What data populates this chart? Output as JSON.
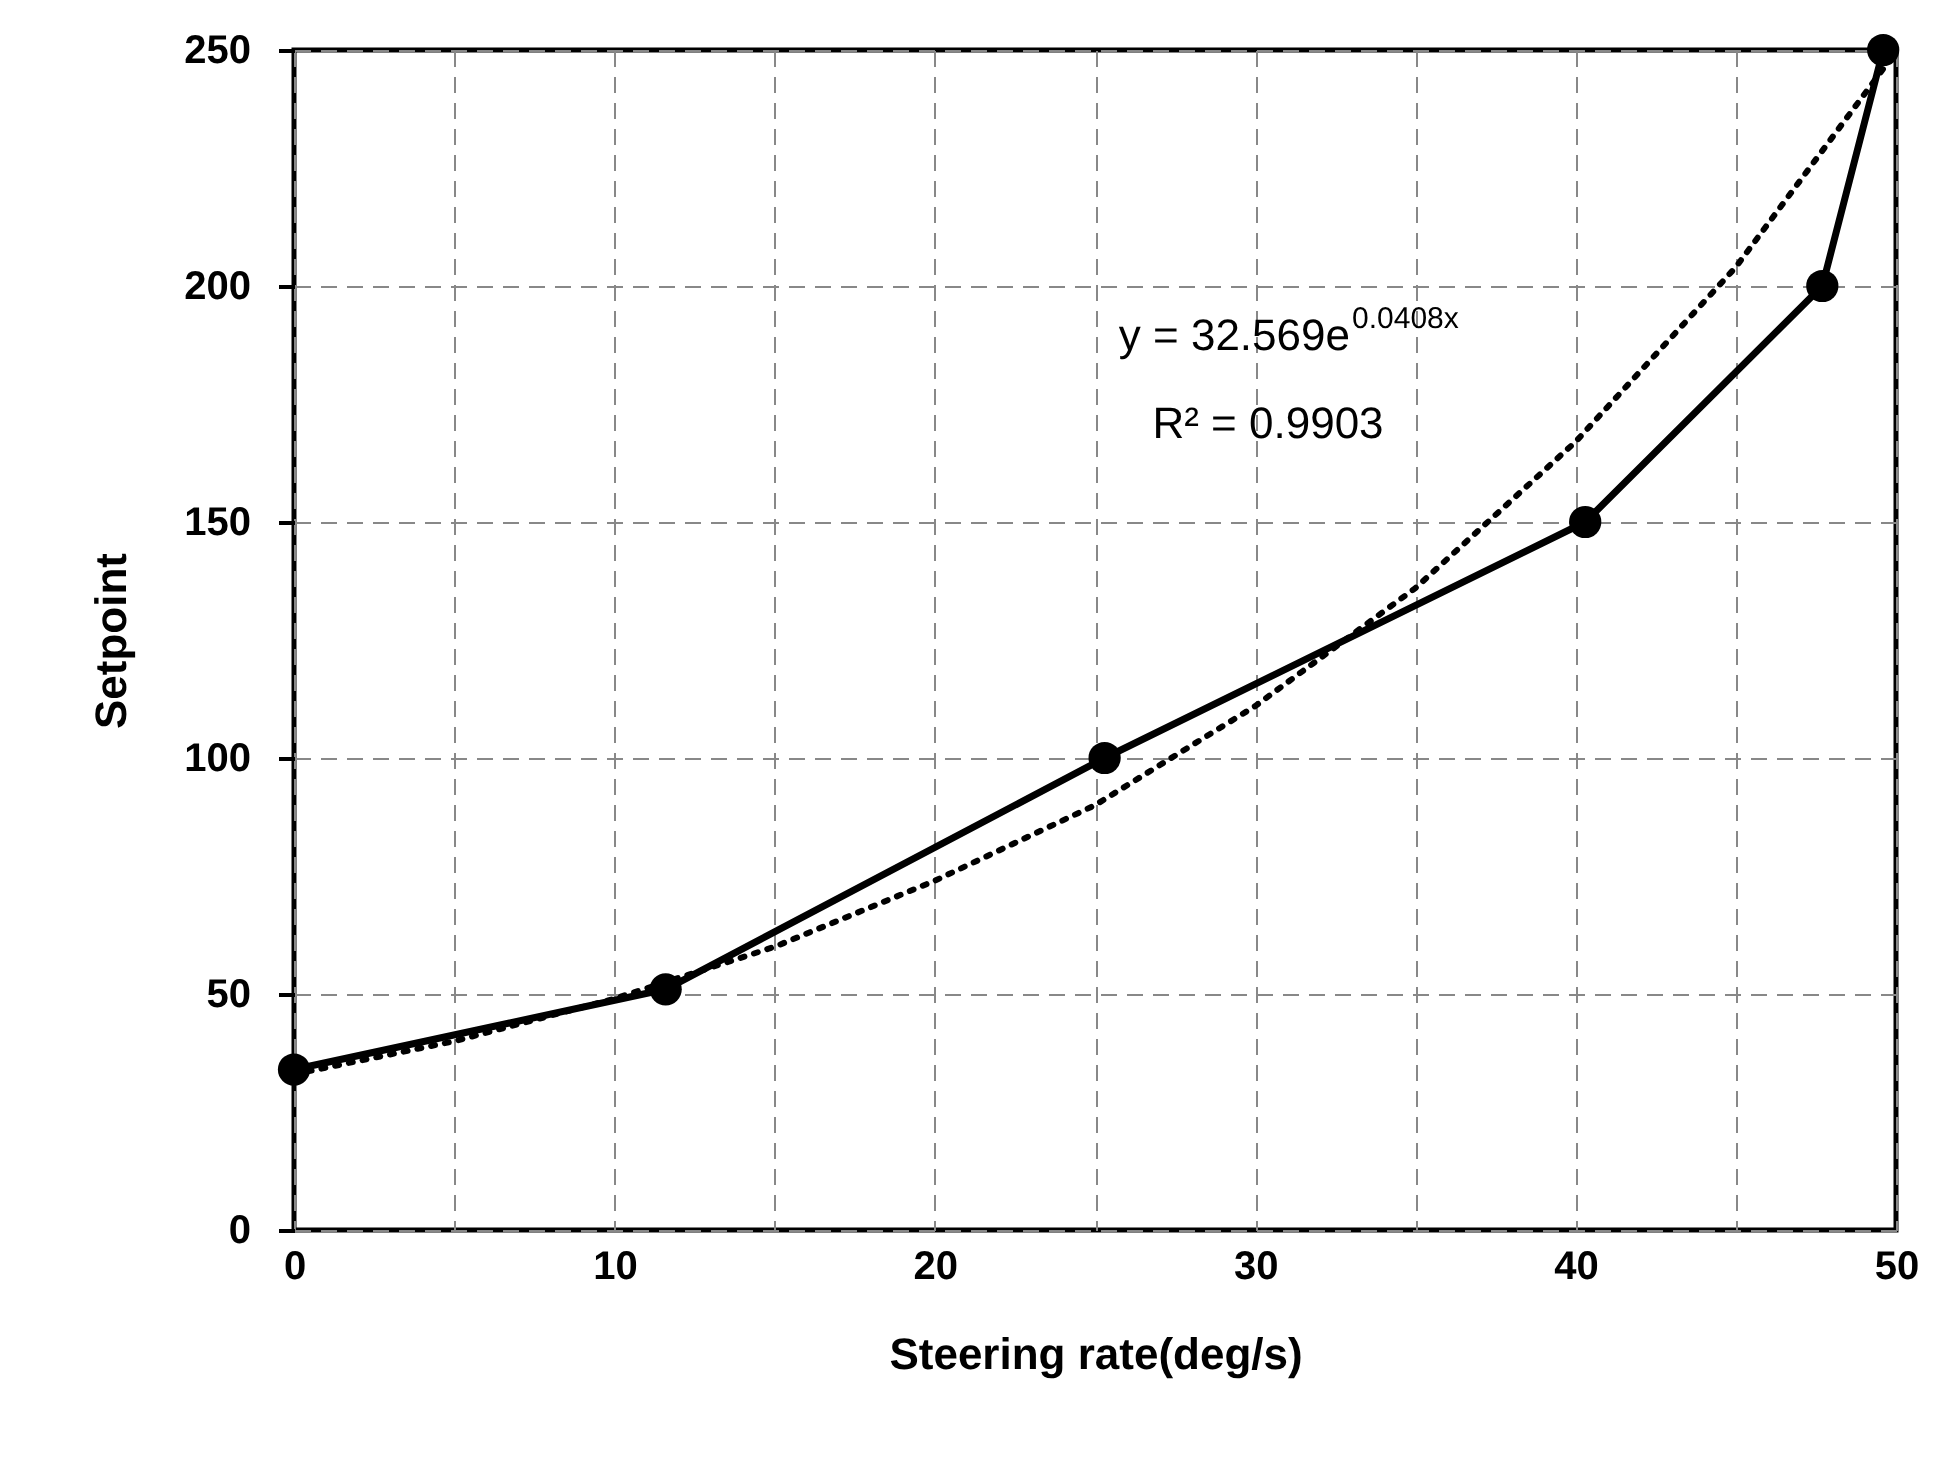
{
  "chart_data": {
    "type": "line",
    "xlabel": "Steering rate(deg/s)",
    "ylabel": "Setpoint",
    "xlim": [
      0,
      50
    ],
    "xticks": [
      0,
      {
        "value": 5,
        "label": null
      },
      10,
      {
        "value": 15,
        "label": null
      },
      20,
      {
        "value": 25,
        "label": null
      },
      30,
      {
        "value": 35,
        "label": null
      },
      40,
      {
        "value": 45,
        "label": null
      },
      50
    ],
    "ylim": [
      0,
      250
    ],
    "yticks": [
      0,
      50,
      100,
      150,
      200,
      250
    ],
    "grid": true,
    "annotations": [
      "y = 32.569e$^{0.0408x}$",
      "R² = 0.9903"
    ],
    "series": [
      {
        "color": "#000000",
        "marker": "circle",
        "line_style": "solid",
        "x": [
          0,
          11.6,
          25.3,
          40.3,
          47.7,
          49.6
        ],
        "values": [
          34,
          51,
          100,
          150,
          200,
          250
        ]
      },
      {
        "color": "#000000",
        "marker": "none",
        "line_style": "dotted",
        "x": [
          0,
          5,
          10,
          15,
          20,
          25,
          30,
          35,
          40,
          45,
          49.6
        ],
        "values": [
          33,
          40,
          49,
          60,
          74,
          90,
          111,
          136,
          167,
          204,
          246
        ]
      }
    ]
  }
}
